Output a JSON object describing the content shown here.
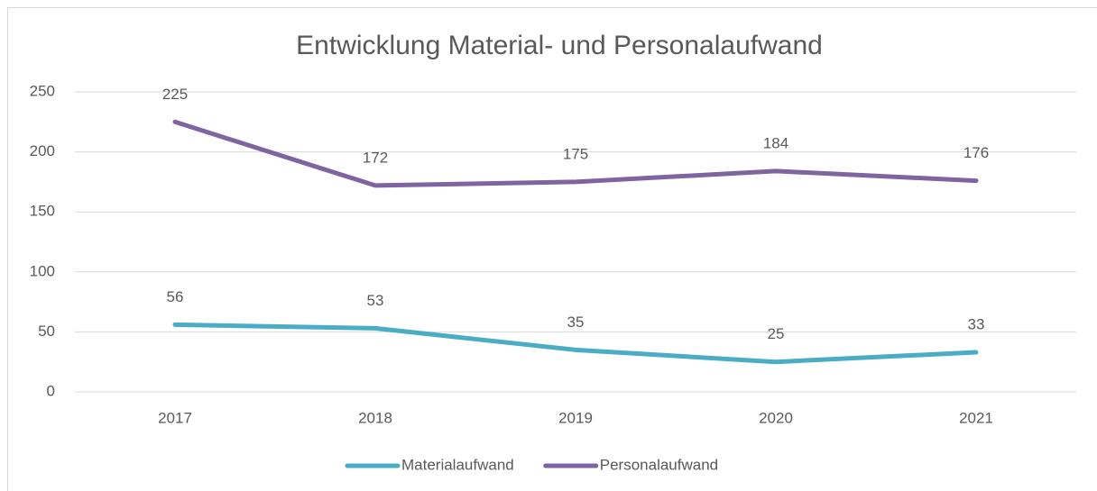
{
  "chart_data": {
    "type": "line",
    "title": "Entwicklung Material- und Personalaufwand",
    "categories": [
      "2017",
      "2018",
      "2019",
      "2020",
      "2021"
    ],
    "series": [
      {
        "name": "Materialaufwand",
        "color": "#4bacc6",
        "values": [
          56,
          53,
          35,
          25,
          33
        ]
      },
      {
        "name": "Personalaufwand",
        "color": "#8064a2",
        "values": [
          225,
          172,
          175,
          184,
          176
        ]
      }
    ],
    "ylim": [
      0,
      250
    ],
    "yticks": [
      0,
      50,
      100,
      150,
      200,
      250
    ],
    "grid": true,
    "legend": "bottom"
  }
}
